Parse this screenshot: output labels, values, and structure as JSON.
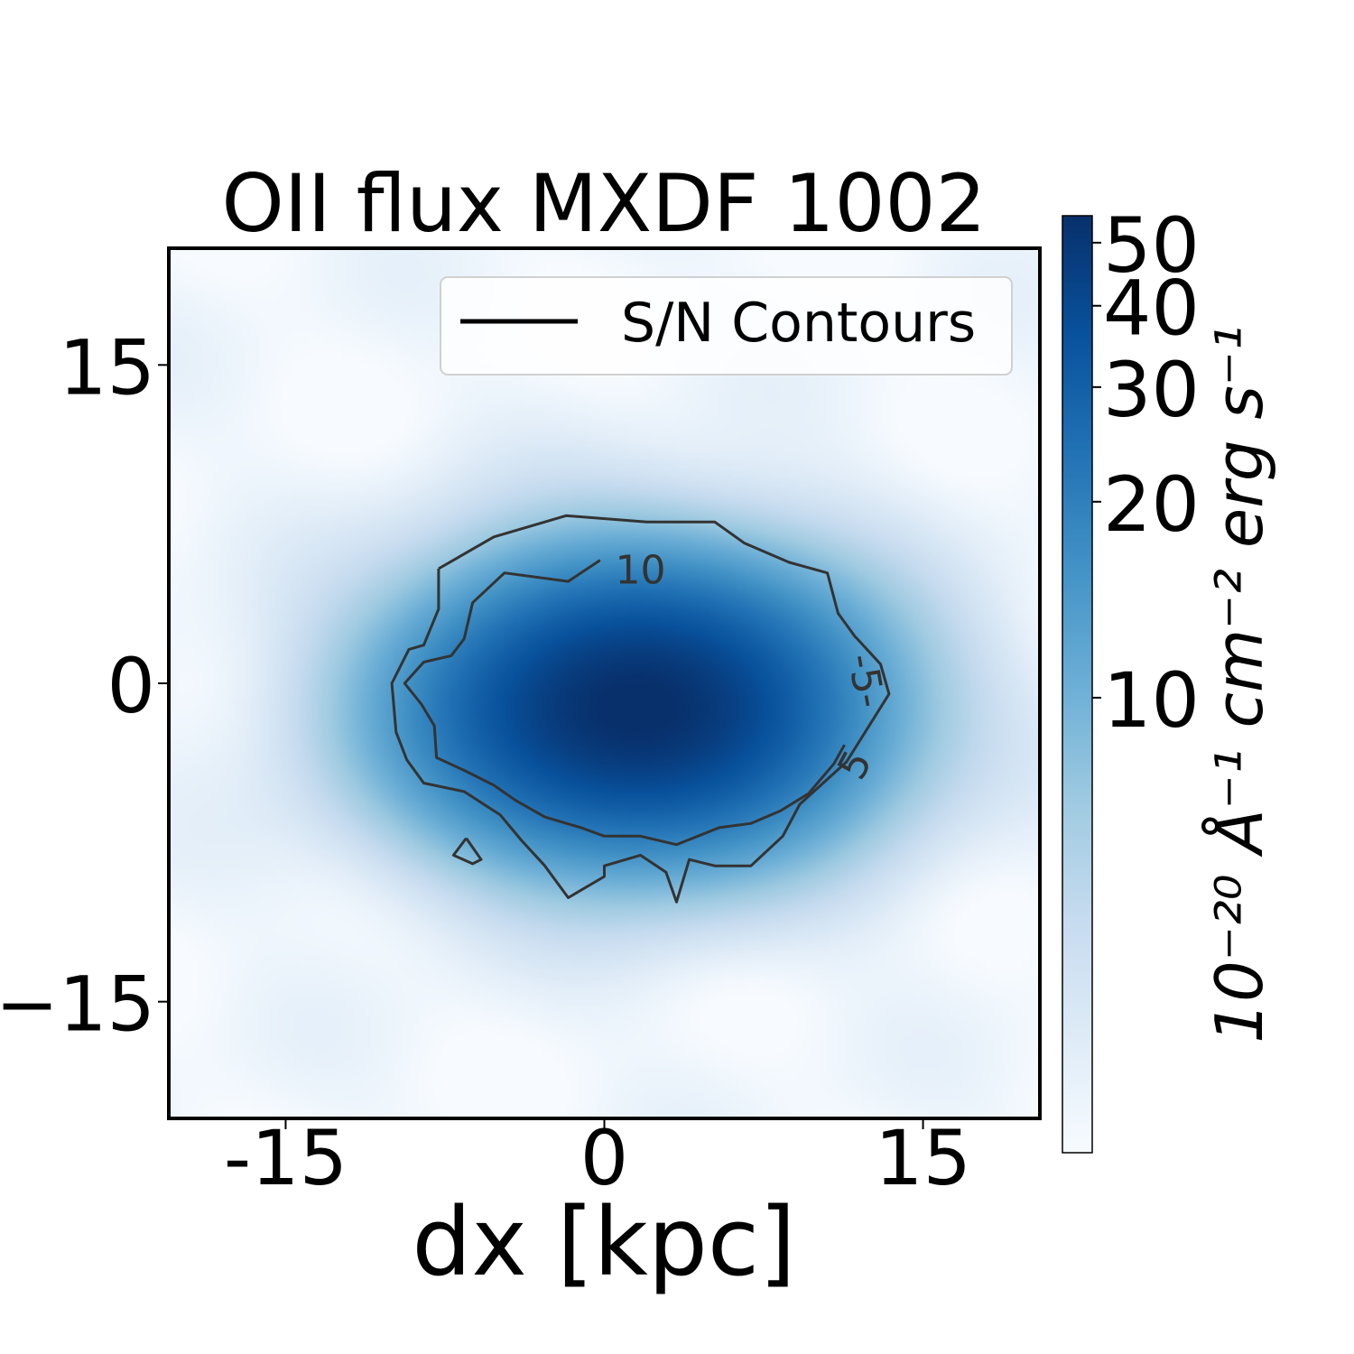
{
  "chart_data": {
    "type": "heatmap",
    "title": "OII flux MXDF 1002",
    "xlabel": "dx [kpc]",
    "ylabel": "",
    "xlim": [
      -20.5,
      20.5
    ],
    "ylim": [
      -20.5,
      20.5
    ],
    "x_ticks": [
      -15,
      0,
      15
    ],
    "x_tick_labels": [
      "-15",
      "0",
      "15"
    ],
    "y_ticks": [
      15,
      0,
      -15
    ],
    "y_tick_labels": [
      "15",
      "0",
      "−15"
    ],
    "colormap": "Blues",
    "colorbar": {
      "scale": "log",
      "range": [
        2,
        55
      ],
      "ticks": [
        10,
        20,
        30,
        40,
        50
      ],
      "tick_labels": [
        "10",
        "20",
        "30",
        "40",
        "50"
      ],
      "label": "10⁻²⁰ Å⁻¹ cm⁻² erg s⁻¹"
    },
    "flux_peak": {
      "center": [
        1.5,
        -1.2
      ],
      "peak_value": 54,
      "sigma_x": 6.5,
      "sigma_y": 4.2
    },
    "legend": {
      "label": "S/N Contours",
      "placement": "upper right"
    },
    "contours": [
      {
        "level": 5,
        "color": "#333333",
        "points": [
          [
            -7.8,
            5.4
          ],
          [
            -5.2,
            6.9
          ],
          [
            -1.8,
            7.9
          ],
          [
            2,
            7.6
          ],
          [
            5.2,
            7.6
          ],
          [
            6.6,
            6.6
          ],
          [
            8.7,
            5.7
          ],
          [
            10.5,
            5.2
          ],
          [
            11,
            3.3
          ],
          [
            11.8,
            2.2
          ],
          [
            11.9,
            2.1
          ],
          [
            13,
            0.9
          ],
          [
            13.4,
            -0.5
          ],
          [
            11.4,
            -3.7
          ],
          [
            9.2,
            -5.7
          ],
          [
            8.4,
            -7.2
          ],
          [
            6.9,
            -8.6
          ],
          [
            5.2,
            -8.6
          ],
          [
            4,
            -8.3
          ],
          [
            3.4,
            -10.3
          ],
          [
            2.9,
            -8.9
          ],
          [
            1.7,
            -8.1
          ],
          [
            0,
            -8.6
          ],
          [
            0,
            -9.1
          ],
          [
            -1.7,
            -10.1
          ],
          [
            -2.8,
            -8.6
          ],
          [
            -3.9,
            -7.4
          ],
          [
            -4.9,
            -6.2
          ],
          [
            -6.6,
            -5.1
          ],
          [
            -8.5,
            -4.7
          ],
          [
            -9.3,
            -3.6
          ],
          [
            -9.8,
            -2.3
          ],
          [
            -10,
            0
          ],
          [
            -9.2,
            1.6
          ],
          [
            -8.5,
            1.8
          ],
          [
            -7.8,
            3.5
          ],
          [
            -7.8,
            5.4
          ]
        ]
      },
      {
        "level": 10,
        "color": "#333333",
        "points": [
          [
            -0.2,
            5.8
          ],
          [
            -1.7,
            4.8
          ],
          [
            -4.7,
            5.2
          ],
          [
            -6.2,
            3.8
          ],
          [
            -6.6,
            2.1
          ],
          [
            -7.2,
            1.3
          ],
          [
            -8.5,
            1
          ],
          [
            -9.4,
            0
          ],
          [
            -8.6,
            -1
          ],
          [
            -8,
            -2
          ],
          [
            -7.9,
            -3.5
          ],
          [
            -6.6,
            -4.1
          ],
          [
            -5.2,
            -4.8
          ],
          [
            -4.2,
            -5.5
          ],
          [
            -2.8,
            -6.3
          ],
          [
            -1.1,
            -6.8
          ],
          [
            0,
            -7.2
          ],
          [
            1.7,
            -7.2
          ],
          [
            3.4,
            -7.6
          ],
          [
            5.4,
            -6.8
          ],
          [
            6.9,
            -6.6
          ],
          [
            8.3,
            -6
          ],
          [
            9.6,
            -5.2
          ],
          [
            10.8,
            -3.8
          ],
          [
            11.3,
            -2.9
          ]
        ]
      },
      {
        "level": -1,
        "color": "#333333",
        "points": [
          [
            -6.5,
            -7.3
          ],
          [
            -7.1,
            -8.1
          ],
          [
            -6.2,
            -8.5
          ],
          [
            -5.8,
            -8.3
          ],
          [
            -6.5,
            -7.3
          ]
        ]
      }
    ],
    "contour_labels": [
      {
        "text": "10",
        "x": 1.7,
        "y": 5.2,
        "angle": 0
      },
      {
        "text": "-5-",
        "x": 12.2,
        "y": 0.1,
        "angle": 80
      },
      {
        "text": "5",
        "x": 11.9,
        "y": -3.9,
        "angle": -62
      }
    ]
  }
}
